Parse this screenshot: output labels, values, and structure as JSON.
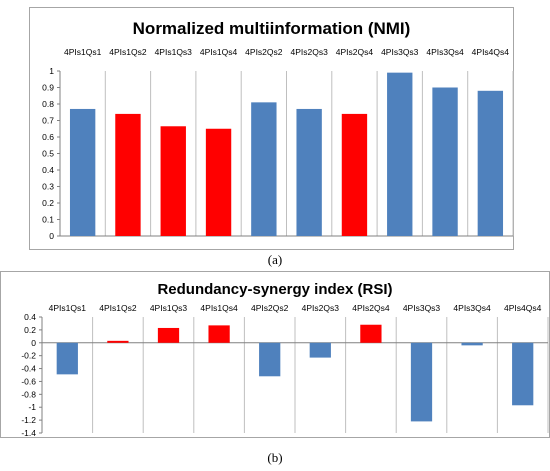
{
  "chart_data": [
    {
      "type": "bar",
      "caption": "(a)",
      "title": "Normalized multiinformation (NMI)",
      "categories": [
        "4PIs1Qs1",
        "4PIs1Qs2",
        "4PIs1Qs3",
        "4PIs1Qs4",
        "4PIs2Qs2",
        "4PIs2Qs3",
        "4PIs2Qs4",
        "4PIs3Qs3",
        "4PIs3Qs4",
        "4PIs4Qs4"
      ],
      "values": [
        0.77,
        0.74,
        0.665,
        0.65,
        0.81,
        0.77,
        0.74,
        0.99,
        0.9,
        0.88
      ],
      "bar_colors": [
        "#4f81bd",
        "#ff0000",
        "#ff0000",
        "#ff0000",
        "#4f81bd",
        "#4f81bd",
        "#ff0000",
        "#4f81bd",
        "#4f81bd",
        "#4f81bd"
      ],
      "yticks": [
        "0",
        "0.1",
        "0.2",
        "0.3",
        "0.4",
        "0.5",
        "0.6",
        "0.7",
        "0.8",
        "0.9",
        "1"
      ],
      "ylim": [
        0,
        1
      ],
      "grid": "vertical category separators",
      "legend": "none"
    },
    {
      "type": "bar",
      "caption": "(b)",
      "title": "Redundancy-synergy index (RSI)",
      "categories": [
        "4PIs1Qs1",
        "4PIs1Qs2",
        "4PIs1Qs3",
        "4PIs1Qs4",
        "4PIs2Qs2",
        "4PIs2Qs3",
        "4PIs2Qs4",
        "4PIs3Qs3",
        "4PIs3Qs4",
        "4PIs4Qs4"
      ],
      "values": [
        -0.49,
        0.03,
        0.23,
        0.27,
        -0.52,
        -0.23,
        0.28,
        -1.22,
        -0.04,
        -0.97
      ],
      "bar_colors": [
        "#4f81bd",
        "#ff0000",
        "#ff0000",
        "#ff0000",
        "#4f81bd",
        "#4f81bd",
        "#ff0000",
        "#4f81bd",
        "#4f81bd",
        "#4f81bd"
      ],
      "yticks": [
        "-1.4",
        "-1.2",
        "-1",
        "-0.8",
        "-0.6",
        "-0.4",
        "-0.2",
        "0",
        "0.2",
        "0.4"
      ],
      "ylim": [
        -1.4,
        0.4
      ],
      "grid": "vertical category separators",
      "legend": "none"
    }
  ]
}
